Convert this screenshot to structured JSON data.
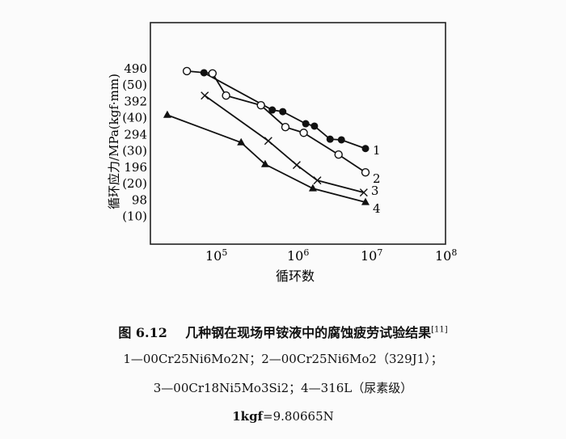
{
  "chart_data": {
    "type": "line",
    "xlabel": "循环数",
    "ylabel": "循环应力/MPa(kgf·mm)",
    "x_scale": "log",
    "xlim": [
      10000,
      200000000
    ],
    "ylim": [
      0,
      560
    ],
    "x_ticks": [
      {
        "value": 100000,
        "base": "10",
        "exp": "5"
      },
      {
        "value": 1000000,
        "base": "10",
        "exp": "6"
      },
      {
        "value": 10000000,
        "base": "10",
        "exp": "7"
      },
      {
        "value": 100000000,
        "base": "10",
        "exp": "8"
      }
    ],
    "y_ticks": [
      {
        "value": 490,
        "label": "490",
        "alt": "(50)"
      },
      {
        "value": 392,
        "label": "392",
        "alt": "(40)"
      },
      {
        "value": 294,
        "label": "294",
        "alt": "(30)"
      },
      {
        "value": 196,
        "label": "196",
        "alt": "(20)"
      },
      {
        "value": 98,
        "label": "98",
        "alt": "(10)"
      }
    ],
    "grid": false,
    "series": [
      {
        "name": "1",
        "marker": "filled-circle",
        "x": [
          83000,
          630000,
          860000,
          1700000,
          2200000,
          3500000,
          4900000,
          10000000
        ],
        "y": [
          478,
          367,
          362,
          326,
          319,
          280,
          278,
          252
        ]
      },
      {
        "name": "2",
        "marker": "open-circle",
        "x": [
          50000,
          107000,
          160000,
          450000,
          930000,
          1600000,
          4500000,
          10000000
        ],
        "y": [
          483,
          476,
          410,
          381,
          316,
          299,
          234,
          181
        ]
      },
      {
        "name": "3",
        "marker": "cross",
        "x": [
          85000,
          560000,
          1300000,
          2400000,
          9500000
        ],
        "y": [
          410,
          275,
          203,
          157,
          121
        ]
      },
      {
        "name": "4",
        "marker": "filled-triangle",
        "x": [
          28000,
          250000,
          510000,
          2100000,
          10000000
        ],
        "y": [
          352,
          270,
          205,
          133,
          92
        ]
      }
    ]
  },
  "caption": {
    "figure_no": "图 6.12",
    "title": "几种钢在现场甲铵液中的腐蚀疲劳试验结果",
    "ref": "[11]",
    "line2": "1—00Cr25Ni6Mo2N；2—00Cr25Ni6Mo2（329J1）；",
    "line3": "3—00Cr18Ni5Mo3Si2；4—316L（尿素级）",
    "line4_bold": "1kgf",
    "line4_rest": "=9.80665N"
  }
}
